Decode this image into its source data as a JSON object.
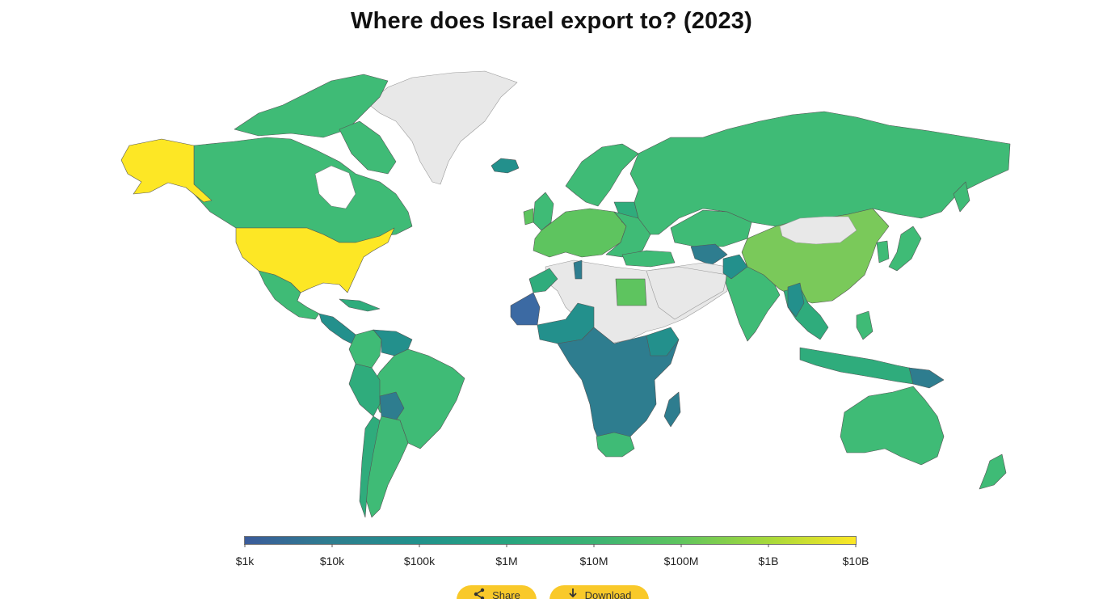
{
  "title": "Where does Israel export to? (2023)",
  "legend": {
    "ticks": [
      "$1k",
      "$10k",
      "$100k",
      "$1M",
      "$10M",
      "$100M",
      "$1B",
      "$10B"
    ],
    "colors": [
      "#3b5b9a",
      "#2e7d8f",
      "#21918c",
      "#27a47f",
      "#3bb273",
      "#5ec45f",
      "#a8d93a",
      "#fde725"
    ]
  },
  "palette": {
    "no_data": "#e8e8e8",
    "yellow": "#fde725",
    "light_green": "#7ac95a",
    "green": "#3fbb76",
    "mid_green": "#2fac7c",
    "teal": "#23908c",
    "blue": "#3c6aa3"
  },
  "buttons": {
    "share": "Share",
    "download": "Download"
  }
}
